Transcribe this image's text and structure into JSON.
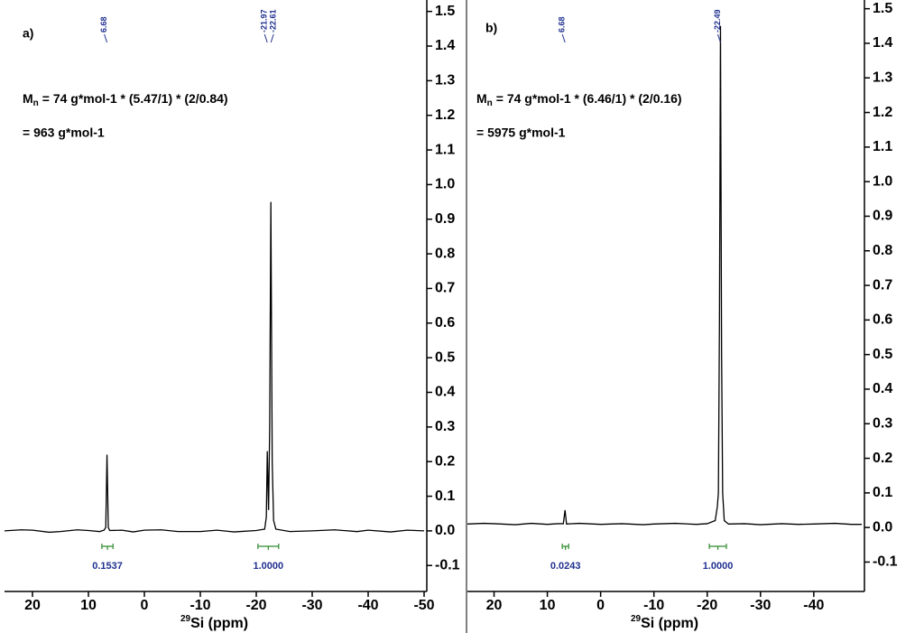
{
  "chart_data": [
    {
      "type": "line",
      "panel_label": "a)",
      "formula_symbol": "M",
      "formula_subscript": "n",
      "formula": "= 74 g*mol-1 * (5.47/1) * (2/0.84)",
      "result": "= 963 g*mol-1",
      "x_label_superscript": "29",
      "x_label": "Si (ppm)",
      "x": [
        25,
        22,
        20,
        17,
        15,
        12,
        10,
        8,
        7.2,
        6.9,
        6.68,
        6.45,
        6.2,
        4,
        2,
        0,
        -3,
        -6,
        -10,
        -13,
        -16,
        -20,
        -21.5,
        -21.8,
        -21.97,
        -22.2,
        -22.4,
        -22.61,
        -22.85,
        -23.1,
        -23.5,
        -26,
        -30,
        -34,
        -38,
        -40,
        -44,
        -47,
        -50
      ],
      "values": [
        0.0,
        0.003,
        0.002,
        -0.004,
        -0.002,
        0.003,
        0.001,
        -0.002,
        0.002,
        0.01,
        0.22,
        0.01,
        0.001,
        0.002,
        -0.003,
        0.002,
        0.003,
        -0.002,
        -0.002,
        0.002,
        -0.003,
        0.001,
        0.005,
        0.04,
        0.23,
        0.06,
        0.3,
        0.95,
        0.2,
        0.03,
        0.005,
        -0.002,
        0.0,
        0.003,
        -0.002,
        0.002,
        -0.003,
        0.002,
        0.0
      ],
      "color": "#000000",
      "xlim": [
        25,
        -50
      ],
      "xticks": [
        20,
        10,
        0,
        -10,
        -20,
        -30,
        -40,
        -50
      ],
      "ylim": [
        -0.175,
        1.52
      ],
      "yticks": [
        1.5,
        1.4,
        1.3,
        1.2,
        1.1,
        {
          "value": 1,
          "label": "1.0"
        },
        0.9,
        0.8,
        0.7,
        0.6,
        0.5,
        0.4,
        0.3,
        0.2,
        0.1,
        {
          "value": 0,
          "label": "0.0"
        },
        -0.1
      ],
      "peak_labels": [
        6.68,
        -21.97,
        -22.61
      ],
      "peak_label_color": "#1f2f8f",
      "integrals": {
        "from": [
          7.6,
          -20.3
        ],
        "to": [
          5.6,
          -24.0
        ],
        "values": [
          0.1537,
          1
        ],
        "value_labels": [
          "0.1537",
          "1.0000"
        ],
        "color": "#2e8b2e",
        "label_color": "#1f2f8f"
      }
    },
    {
      "type": "line",
      "panel_label": "b)",
      "formula_symbol": "M",
      "formula_subscript": "n",
      "formula": "= 74 g*mol-1 * (6.46/1) * (2/0.16)",
      "result": "= 5975 g*mol-1",
      "x_label_superscript": "29",
      "x_label": "Si (ppm)",
      "x": [
        25,
        22,
        20,
        16,
        13,
        10,
        8,
        7,
        6.68,
        6.4,
        4,
        0,
        -4,
        -8,
        -10,
        -14,
        -18,
        -20,
        -21.5,
        -21.9,
        -22.1,
        -22.3,
        -22.49,
        -22.7,
        -22.9,
        -23.2,
        -24,
        -27,
        -30,
        -34,
        -37,
        -40,
        -44,
        -47,
        -49
      ],
      "values": [
        0.01,
        0.012,
        0.011,
        0.008,
        0.012,
        0.009,
        0.011,
        0.011,
        0.05,
        0.01,
        0.012,
        0.009,
        0.011,
        0.008,
        0.01,
        0.012,
        0.009,
        0.011,
        0.02,
        0.06,
        0.1,
        0.6,
        1.45,
        0.5,
        0.1,
        0.02,
        0.01,
        0.011,
        0.008,
        0.011,
        0.009,
        0.01,
        0.012,
        0.009,
        0.009
      ],
      "color": "#000000",
      "xlim": [
        25,
        -49
      ],
      "xticks": [
        20,
        10,
        0,
        -10,
        -20,
        -30,
        -40
      ],
      "ylim": [
        -0.185,
        1.52
      ],
      "yticks": [
        1.5,
        1.4,
        1.3,
        1.2,
        1.1,
        {
          "value": 1,
          "label": "1.0"
        },
        0.9,
        0.8,
        0.7,
        0.6,
        0.5,
        0.4,
        0.3,
        0.2,
        0.1,
        {
          "value": 0,
          "label": "0.0"
        },
        -0.1
      ],
      "peak_labels": [
        6.68,
        -22.49
      ],
      "peak_label_color": "#1f2f8f",
      "integrals": {
        "from": [
          7.2,
          -20.4
        ],
        "to": [
          6.0,
          -23.6
        ],
        "values": [
          0.0243,
          1
        ],
        "value_labels": [
          "0.0243",
          "1.0000"
        ],
        "color": "#2e8b2e",
        "label_color": "#1f2f8f"
      }
    }
  ]
}
